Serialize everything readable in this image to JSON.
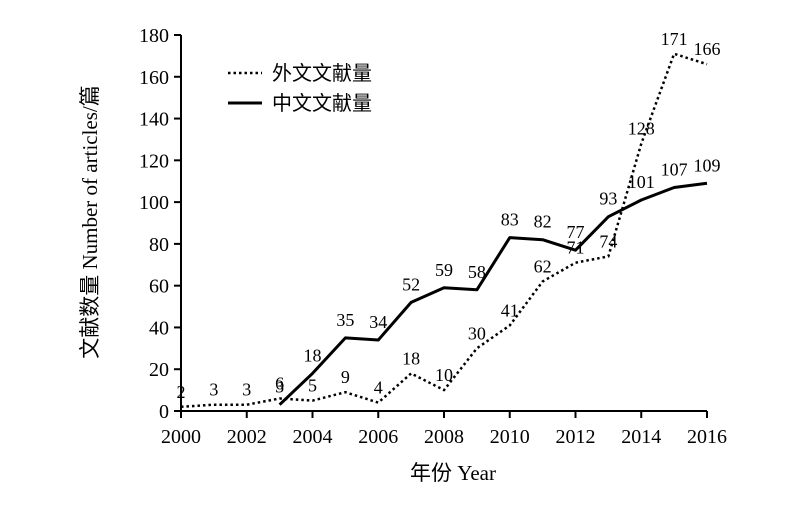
{
  "chart_data": {
    "type": "line",
    "xlabel": "年份 Year",
    "ylabel": "文献数量 Number of articles/篇",
    "xlim": [
      2000,
      2016
    ],
    "ylim": [
      0,
      180
    ],
    "xticks": [
      "2000",
      "2002",
      "2004",
      "2006",
      "2008",
      "2010",
      "2012",
      "2014",
      "2016"
    ],
    "yticks": [
      "0",
      "20",
      "40",
      "60",
      "80",
      "100",
      "120",
      "140",
      "160",
      "180"
    ],
    "grid": false,
    "legend_position": "top-left",
    "series": [
      {
        "name": "外文文献量",
        "style": "dotted",
        "color": "#000000",
        "points": [
          {
            "x": 2000,
            "y": 2
          },
          {
            "x": 2001,
            "y": 3
          },
          {
            "x": 2002,
            "y": 3
          },
          {
            "x": 2003,
            "y": 6
          },
          {
            "x": 2004,
            "y": 5
          },
          {
            "x": 2005,
            "y": 9
          },
          {
            "x": 2006,
            "y": 4
          },
          {
            "x": 2007,
            "y": 18
          },
          {
            "x": 2008,
            "y": 10
          },
          {
            "x": 2009,
            "y": 30
          },
          {
            "x": 2010,
            "y": 41
          },
          {
            "x": 2011,
            "y": 62
          },
          {
            "x": 2012,
            "y": 71
          },
          {
            "x": 2013,
            "y": 74
          },
          {
            "x": 2014,
            "y": 128
          },
          {
            "x": 2015,
            "y": 171
          },
          {
            "x": 2016,
            "y": 166
          }
        ]
      },
      {
        "name": "中文文献量",
        "style": "solid",
        "color": "#000000",
        "points": [
          {
            "x": 2003,
            "y": 3
          },
          {
            "x": 2004,
            "y": 18
          },
          {
            "x": 2005,
            "y": 35
          },
          {
            "x": 2006,
            "y": 34
          },
          {
            "x": 2007,
            "y": 52
          },
          {
            "x": 2008,
            "y": 59
          },
          {
            "x": 2009,
            "y": 58
          },
          {
            "x": 2010,
            "y": 83
          },
          {
            "x": 2011,
            "y": 82
          },
          {
            "x": 2012,
            "y": 77
          },
          {
            "x": 2013,
            "y": 93
          },
          {
            "x": 2014,
            "y": 101
          },
          {
            "x": 2015,
            "y": 107
          },
          {
            "x": 2016,
            "y": 109
          }
        ]
      }
    ]
  }
}
